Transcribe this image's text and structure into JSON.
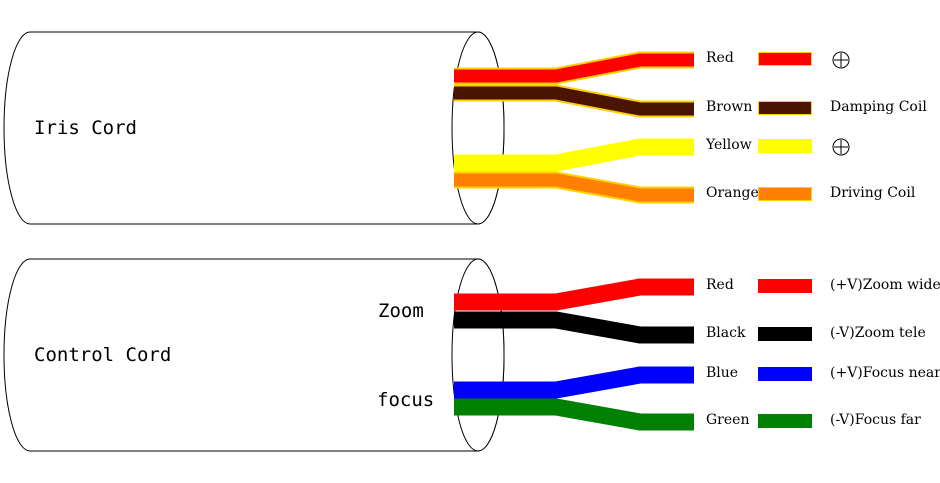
{
  "cords": [
    {
      "label": "Iris Cord",
      "side_labels": [],
      "wires": [
        {
          "name": "Red",
          "color": "#ff0000",
          "edge": "#ffd000",
          "function": "⊕",
          "function_kind": "plus-symbol"
        },
        {
          "name": "Brown",
          "color": "#4a1400",
          "edge": "#ffd000",
          "function": "Damping Coil",
          "function_kind": "text"
        },
        {
          "name": "Yellow",
          "color": "#ffff00",
          "edge": "#ffff00",
          "function": "⊕",
          "function_kind": "plus-symbol"
        },
        {
          "name": "Orange",
          "color": "#ff8000",
          "edge": "#ffd000",
          "function": "Driving Coil",
          "function_kind": "text"
        }
      ]
    },
    {
      "label": "Control Cord",
      "side_labels": [
        "Zoom",
        "focus"
      ],
      "wires": [
        {
          "name": "Red",
          "color": "#ff0000",
          "edge": "#ff0000",
          "function": "(+V)Zoom wide",
          "function_kind": "text"
        },
        {
          "name": "Black",
          "color": "#000000",
          "edge": "#000000",
          "function": "(-V)Zoom tele",
          "function_kind": "text"
        },
        {
          "name": "Blue",
          "color": "#0000ff",
          "edge": "#0000ff",
          "function": "(+V)Focus near",
          "function_kind": "text"
        },
        {
          "name": "Green",
          "color": "#008000",
          "edge": "#008000",
          "function": "(-V)Focus far",
          "function_kind": "text"
        }
      ]
    }
  ]
}
